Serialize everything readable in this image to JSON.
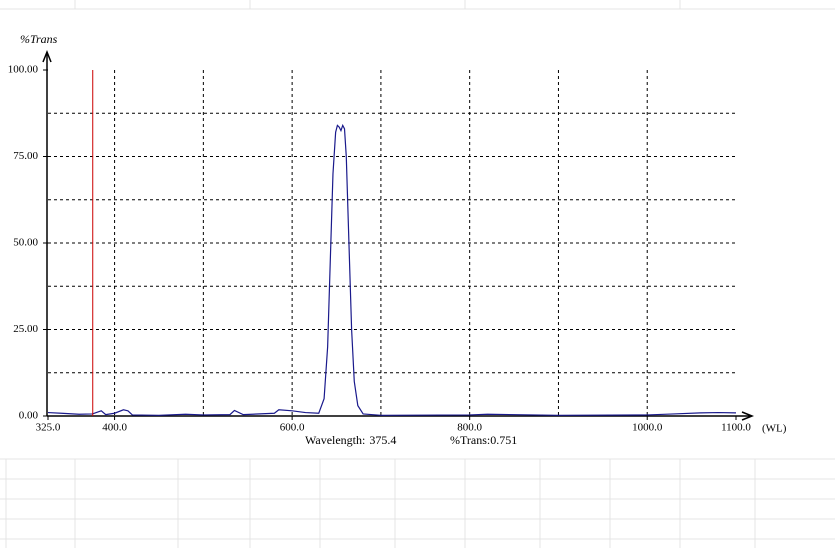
{
  "chart_data": {
    "type": "line",
    "y_label": "%Trans",
    "x_label": "(WL)",
    "x": [
      325,
      340,
      360,
      375,
      385,
      390,
      400,
      410,
      415,
      420,
      450,
      480,
      500,
      530,
      535,
      545,
      580,
      585,
      600,
      615,
      630,
      636,
      640,
      643,
      646,
      649,
      651,
      653,
      655,
      657,
      659,
      661,
      664,
      667,
      670,
      674,
      680,
      700,
      800,
      820,
      900,
      1000,
      1030,
      1060,
      1080,
      1100
    ],
    "series": [
      {
        "name": "%Trans",
        "color": "#1a1a8c",
        "values": [
          1,
          0.8,
          0.5,
          0.6,
          1.5,
          0.4,
          0.8,
          1.8,
          1.5,
          0.3,
          0.2,
          0.5,
          0.3,
          0.4,
          1.6,
          0.4,
          0.8,
          1.8,
          1.5,
          1.0,
          0.8,
          5,
          20,
          45,
          70,
          82,
          84,
          83.5,
          82.5,
          84,
          83,
          75,
          50,
          25,
          10,
          3,
          0.6,
          0.2,
          0.3,
          0.5,
          0.2,
          0.3,
          0.6,
          0.9,
          1,
          0.9
        ]
      }
    ],
    "xlim": [
      325,
      1100
    ],
    "ylim": [
      0,
      100
    ],
    "xticks": [
      {
        "value": 325,
        "label": "325.0"
      },
      {
        "value": 400,
        "label": "400.0"
      },
      {
        "value": 600,
        "label": "600.0"
      },
      {
        "value": 800,
        "label": "800.0"
      },
      {
        "value": 1000,
        "label": "1000.0"
      },
      {
        "value": 1100,
        "label": "1100.0"
      }
    ],
    "yticks": [
      {
        "value": 0,
        "label": "0.00"
      },
      {
        "value": 25,
        "label": "25.00"
      },
      {
        "value": 50,
        "label": "50.00"
      },
      {
        "value": 75,
        "label": "75.00"
      },
      {
        "value": 100,
        "label": "100.00"
      }
    ],
    "xgrid": [
      400,
      500,
      600,
      700,
      800,
      900,
      1000
    ],
    "ygrid": [
      12.5,
      25,
      37.5,
      50,
      62.5,
      75,
      87.5
    ],
    "cursor_color": "#cc0000",
    "readout": {
      "wavelength_label": "Wavelength:",
      "wavelength": 375.4,
      "trans_label": "%Trans:",
      "trans": 0.751
    }
  }
}
